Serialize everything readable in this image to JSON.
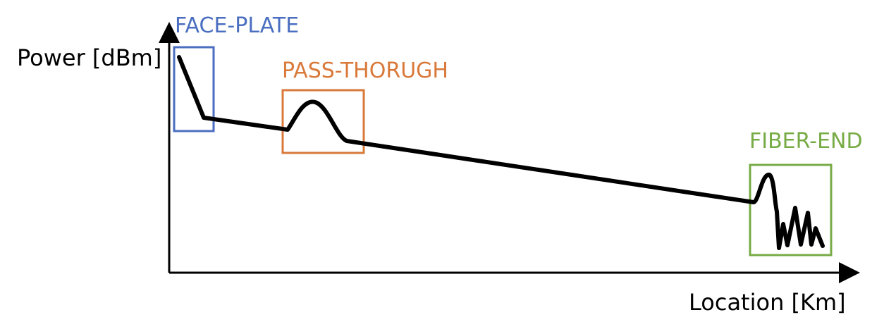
{
  "axes": {
    "y_label": "Power [dBm]",
    "x_label": "Location [Km]"
  },
  "regions": [
    {
      "id": "face",
      "label": "FACE-PLATE",
      "color": "#4a6ec0"
    },
    {
      "id": "pass",
      "label": "PASS-THORUGH",
      "color": "#d9793a"
    },
    {
      "id": "end",
      "label": "FIBER-END",
      "color": "#77ab45"
    }
  ],
  "colors": {
    "trace": "#000000",
    "axis": "#000000"
  }
}
